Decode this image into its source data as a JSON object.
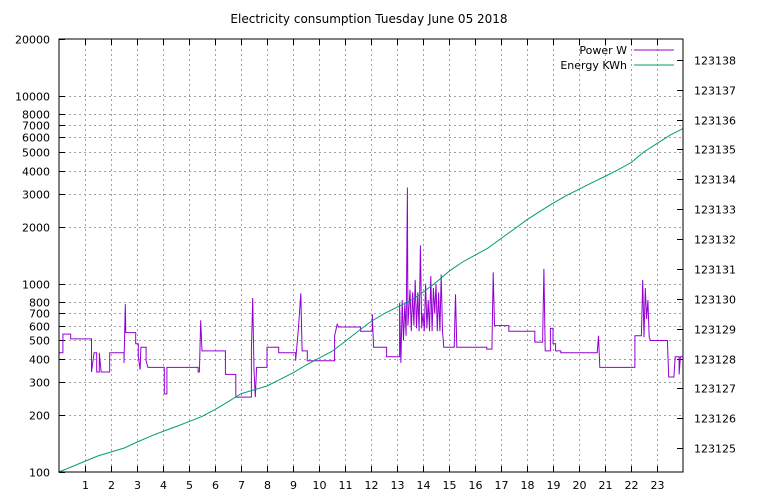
{
  "chart_data": {
    "type": "line",
    "title": "Electricity consumption Tuesday June 05 2018",
    "xlabel": "",
    "ylabel": "",
    "y2label": "",
    "grid": true,
    "legend_position": "top-right",
    "x_range": [
      0,
      24
    ],
    "x_ticks": [
      1,
      2,
      3,
      4,
      5,
      6,
      7,
      8,
      9,
      10,
      11,
      12,
      13,
      14,
      15,
      16,
      17,
      18,
      19,
      20,
      21,
      22,
      23
    ],
    "y_scale": "log",
    "y_range": [
      100,
      20000
    ],
    "y_ticks": [
      100,
      200,
      300,
      400,
      500,
      600,
      700,
      800,
      1000,
      2000,
      3000,
      4000,
      5000,
      6000,
      7000,
      8000,
      10000,
      20000
    ],
    "y2_range": [
      123124.2,
      123138.7
    ],
    "y2_ticks": [
      123125,
      123126,
      123127,
      123128,
      123129,
      123130,
      123131,
      123132,
      123133,
      123134,
      123135,
      123136,
      123137,
      123138
    ],
    "series": [
      {
        "name": "Power W",
        "axis": "y",
        "color": "#9400d3",
        "points": [
          [
            0.0,
            430
          ],
          [
            0.15,
            430
          ],
          [
            0.15,
            540
          ],
          [
            0.45,
            540
          ],
          [
            0.45,
            510
          ],
          [
            1.25,
            510
          ],
          [
            1.25,
            340
          ],
          [
            1.35,
            430
          ],
          [
            1.45,
            430
          ],
          [
            1.45,
            340
          ],
          [
            1.55,
            340
          ],
          [
            1.55,
            430
          ],
          [
            1.62,
            340
          ],
          [
            1.95,
            340
          ],
          [
            1.95,
            430
          ],
          [
            2.5,
            430
          ],
          [
            2.5,
            380
          ],
          [
            2.55,
            780
          ],
          [
            2.57,
            550
          ],
          [
            2.95,
            550
          ],
          [
            2.95,
            480
          ],
          [
            3.05,
            480
          ],
          [
            3.05,
            410
          ],
          [
            3.12,
            350
          ],
          [
            3.15,
            460
          ],
          [
            3.35,
            460
          ],
          [
            3.35,
            390
          ],
          [
            3.42,
            360
          ],
          [
            4.05,
            360
          ],
          [
            4.05,
            260
          ],
          [
            4.15,
            260
          ],
          [
            4.15,
            360
          ],
          [
            5.35,
            360
          ],
          [
            5.35,
            340
          ],
          [
            5.4,
            340
          ],
          [
            5.45,
            640
          ],
          [
            5.5,
            440
          ],
          [
            6.4,
            440
          ],
          [
            6.4,
            330
          ],
          [
            6.8,
            330
          ],
          [
            6.8,
            250
          ],
          [
            7.4,
            250
          ],
          [
            7.4,
            440
          ],
          [
            7.45,
            840
          ],
          [
            7.5,
            350
          ],
          [
            7.55,
            250
          ],
          [
            7.6,
            360
          ],
          [
            8.0,
            360
          ],
          [
            8.0,
            460
          ],
          [
            8.45,
            460
          ],
          [
            8.45,
            430
          ],
          [
            9.1,
            430
          ],
          [
            9.1,
            390
          ],
          [
            9.2,
            560
          ],
          [
            9.3,
            890
          ],
          [
            9.35,
            440
          ],
          [
            9.55,
            440
          ],
          [
            9.55,
            390
          ],
          [
            10.6,
            390
          ],
          [
            10.6,
            530
          ],
          [
            10.7,
            610
          ],
          [
            10.75,
            590
          ],
          [
            11.6,
            590
          ],
          [
            11.6,
            560
          ],
          [
            12.05,
            560
          ],
          [
            12.05,
            690
          ],
          [
            12.1,
            460
          ],
          [
            12.6,
            460
          ],
          [
            12.6,
            410
          ],
          [
            13.1,
            410
          ],
          [
            13.1,
            790
          ],
          [
            13.15,
            380
          ],
          [
            13.2,
            820
          ],
          [
            13.25,
            500
          ],
          [
            13.3,
            780
          ],
          [
            13.35,
            530
          ],
          [
            13.4,
            3250
          ],
          [
            13.42,
            600
          ],
          [
            13.5,
            930
          ],
          [
            13.55,
            560
          ],
          [
            13.6,
            900
          ],
          [
            13.65,
            600
          ],
          [
            13.7,
            1050
          ],
          [
            13.75,
            580
          ],
          [
            13.8,
            900
          ],
          [
            13.85,
            560
          ],
          [
            13.9,
            1600
          ],
          [
            13.95,
            580
          ],
          [
            14.0,
            700
          ],
          [
            14.05,
            560
          ],
          [
            14.1,
            1000
          ],
          [
            14.15,
            580
          ],
          [
            14.2,
            820
          ],
          [
            14.25,
            560
          ],
          [
            14.3,
            1100
          ],
          [
            14.35,
            560
          ],
          [
            14.4,
            950
          ],
          [
            14.45,
            700
          ],
          [
            14.5,
            1000
          ],
          [
            14.55,
            560
          ],
          [
            14.6,
            900
          ],
          [
            14.65,
            560
          ],
          [
            14.7,
            1120
          ],
          [
            14.75,
            560
          ],
          [
            14.8,
            460
          ],
          [
            15.2,
            460
          ],
          [
            15.25,
            880
          ],
          [
            15.3,
            460
          ],
          [
            16.45,
            460
          ],
          [
            16.45,
            450
          ],
          [
            16.65,
            450
          ],
          [
            16.7,
            1150
          ],
          [
            16.75,
            600
          ],
          [
            17.3,
            600
          ],
          [
            17.3,
            560
          ],
          [
            18.3,
            560
          ],
          [
            18.3,
            490
          ],
          [
            18.6,
            490
          ],
          [
            18.65,
            1200
          ],
          [
            18.7,
            440
          ],
          [
            18.9,
            440
          ],
          [
            18.9,
            580
          ],
          [
            19.0,
            580
          ],
          [
            19.0,
            480
          ],
          [
            19.1,
            480
          ],
          [
            19.1,
            440
          ],
          [
            19.3,
            440
          ],
          [
            19.3,
            430
          ],
          [
            20.7,
            430
          ],
          [
            20.75,
            530
          ],
          [
            20.8,
            360
          ],
          [
            22.15,
            360
          ],
          [
            22.15,
            530
          ],
          [
            22.4,
            530
          ],
          [
            22.45,
            1050
          ],
          [
            22.5,
            520
          ],
          [
            22.55,
            950
          ],
          [
            22.6,
            650
          ],
          [
            22.65,
            820
          ],
          [
            22.7,
            520
          ],
          [
            22.75,
            500
          ],
          [
            23.4,
            500
          ],
          [
            23.45,
            320
          ],
          [
            23.65,
            320
          ],
          [
            23.7,
            410
          ],
          [
            23.85,
            410
          ],
          [
            23.85,
            330
          ],
          [
            23.9,
            410
          ],
          [
            24.0,
            410
          ]
        ]
      },
      {
        "name": "Energy KWh",
        "axis": "y2",
        "color": "#009e73",
        "points": [
          [
            0.0,
            123124.2
          ],
          [
            1.0,
            123124.56
          ],
          [
            1.5,
            123124.74
          ],
          [
            2.0,
            123124.87
          ],
          [
            2.5,
            123125.0
          ],
          [
            3.0,
            123125.2
          ],
          [
            3.5,
            123125.39
          ],
          [
            4.0,
            123125.56
          ],
          [
            4.5,
            123125.72
          ],
          [
            5.0,
            123125.89
          ],
          [
            5.5,
            123126.06
          ],
          [
            6.0,
            123126.29
          ],
          [
            6.5,
            123126.55
          ],
          [
            7.0,
            123126.82
          ],
          [
            7.5,
            123126.95
          ],
          [
            8.0,
            123127.08
          ],
          [
            8.5,
            123127.3
          ],
          [
            9.0,
            123127.52
          ],
          [
            9.5,
            123127.78
          ],
          [
            10.0,
            123128.01
          ],
          [
            10.5,
            123128.24
          ],
          [
            11.0,
            123128.57
          ],
          [
            11.5,
            123128.91
          ],
          [
            12.0,
            123129.24
          ],
          [
            12.5,
            123129.5
          ],
          [
            13.0,
            123129.72
          ],
          [
            13.5,
            123129.93
          ],
          [
            14.0,
            123130.22
          ],
          [
            14.5,
            123130.55
          ],
          [
            15.0,
            123130.92
          ],
          [
            15.5,
            123131.22
          ],
          [
            16.0,
            123131.46
          ],
          [
            16.5,
            123131.7
          ],
          [
            17.0,
            123132.02
          ],
          [
            17.5,
            123132.33
          ],
          [
            18.0,
            123132.65
          ],
          [
            18.5,
            123132.93
          ],
          [
            19.0,
            123133.2
          ],
          [
            19.5,
            123133.45
          ],
          [
            20.0,
            123133.67
          ],
          [
            20.5,
            123133.89
          ],
          [
            21.0,
            123134.1
          ],
          [
            21.5,
            123134.32
          ],
          [
            22.0,
            123134.56
          ],
          [
            22.5,
            123134.92
          ],
          [
            23.0,
            123135.2
          ],
          [
            23.5,
            123135.48
          ],
          [
            24.0,
            123135.7
          ]
        ]
      }
    ]
  }
}
